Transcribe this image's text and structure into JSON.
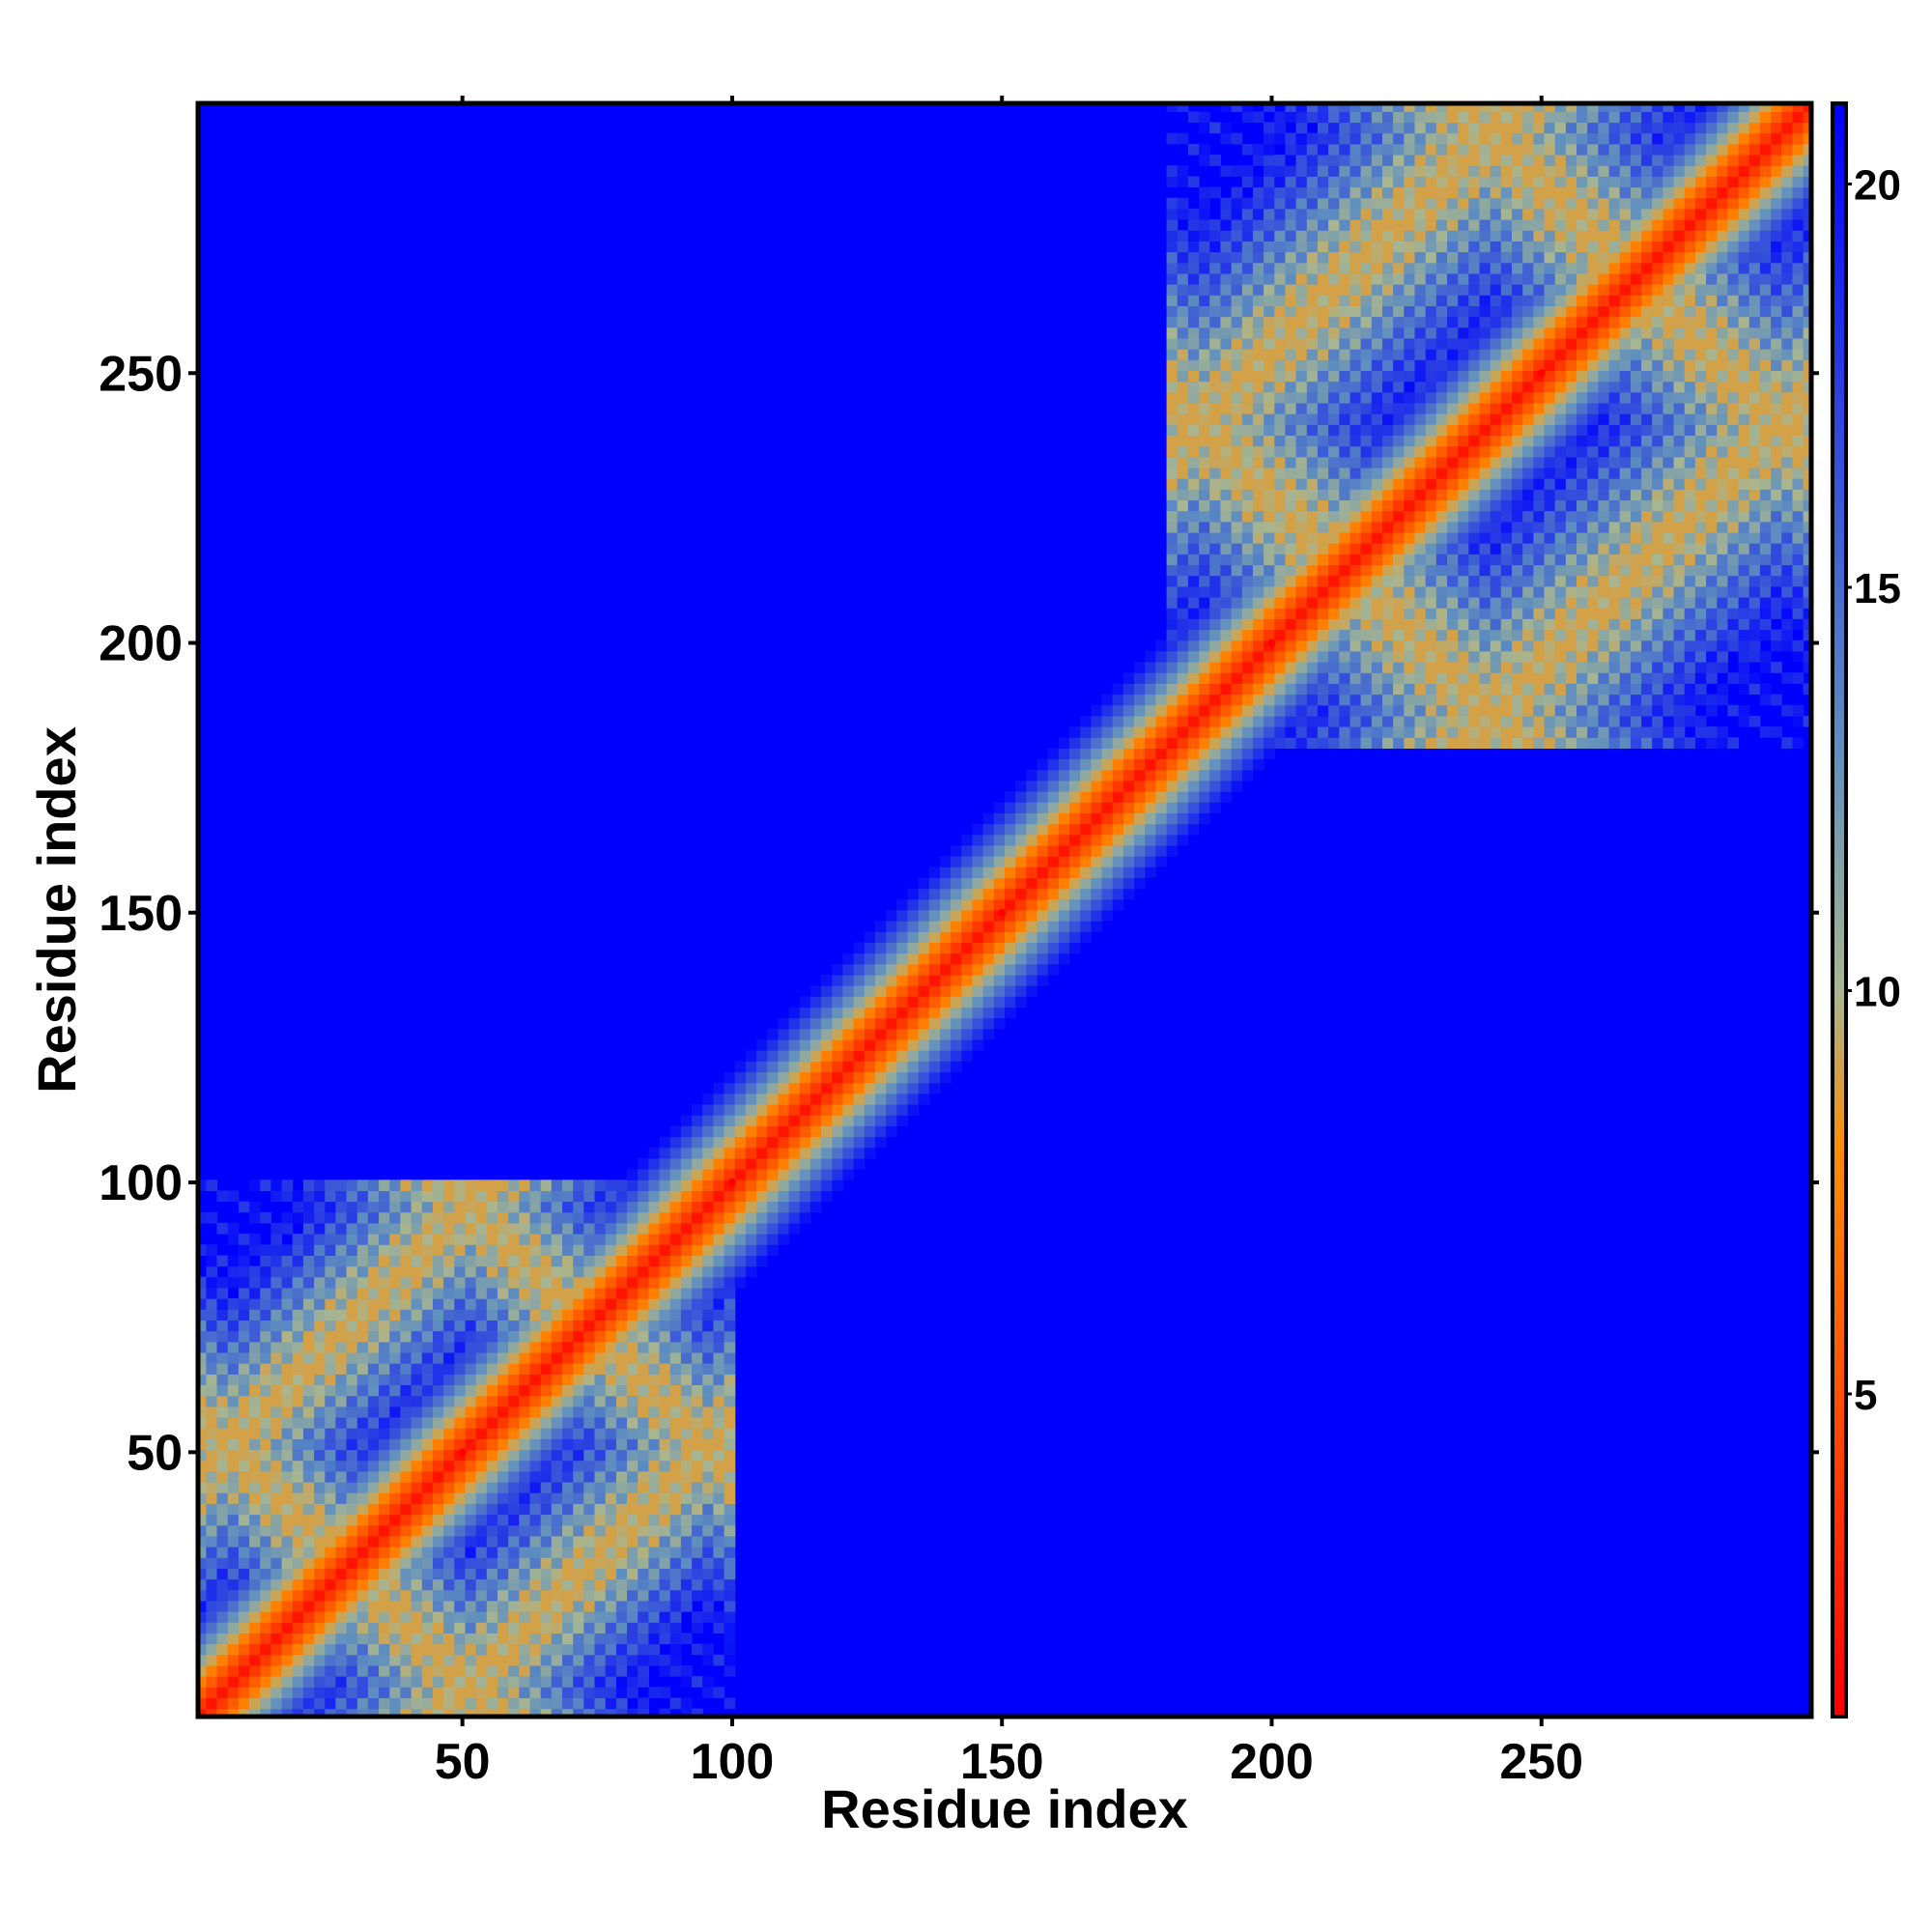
{
  "chart_data": {
    "type": "heatmap",
    "title": "",
    "xlabel": "Residue index",
    "ylabel": "Residue index",
    "xlim": [
      1,
      300
    ],
    "ylim": [
      1,
      300
    ],
    "x_ticks": [
      "50",
      "100",
      "150",
      "200",
      "250"
    ],
    "y_ticks": [
      "50",
      "100",
      "150",
      "200",
      "250"
    ],
    "x_tick_values": [
      50,
      100,
      150,
      200,
      250
    ],
    "y_tick_values": [
      50,
      100,
      150,
      200,
      250
    ],
    "colorbar": {
      "range": [
        1,
        21
      ],
      "ticks": [
        "5",
        "10",
        "15",
        "20"
      ],
      "tick_values": [
        5,
        10,
        15,
        20
      ],
      "colors": [
        "#ff0000",
        "#ff8c00",
        "#a8b590",
        "#5f8fbf",
        "#0000ff"
      ],
      "color_stops": [
        0,
        0.35,
        0.45,
        0.6,
        1.0
      ]
    },
    "background_color": "#0000ff",
    "domains": [
      {
        "start": 1,
        "end": 100
      },
      {
        "start": 180,
        "end": 300
      }
    ],
    "series": [
      {
        "values": [
          [
            1,
            1,
            1
          ],
          [
            50,
            50,
            1
          ],
          [
            100,
            100,
            1
          ],
          [
            150,
            150,
            1
          ],
          [
            200,
            200,
            1
          ],
          [
            250,
            250,
            1
          ],
          [
            300,
            300,
            1
          ]
        ]
      }
    ]
  }
}
